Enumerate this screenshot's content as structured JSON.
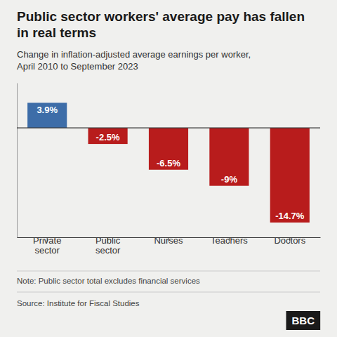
{
  "chart_data": {
    "type": "bar",
    "title": "Public sector workers' average pay has fallen\nin real terms",
    "subtitle": "Change in inflation-adjusted average earnings per worker,\nApril 2010 to September 2023",
    "categories": [
      "Private\nsector",
      "Public\nsector",
      "Nurses",
      "Teachers",
      "Doctors"
    ],
    "values": [
      3.9,
      -2.5,
      -6.5,
      -9.0,
      -14.7
    ],
    "value_labels": [
      "3.9%",
      "-2.5%",
      "-6.5%",
      "-9%",
      "-14.7%"
    ],
    "colors": [
      "#3d6da8",
      "#b81c1c",
      "#b81c1c",
      "#b81c1c",
      "#b81c1c"
    ],
    "ylim": [
      -17,
      7
    ],
    "data_labels": true,
    "tick_labels": "x",
    "grid": false,
    "annotations": [
      "Note: Public sector total excludes financial services",
      "Source: Institute for Fiscal Studies",
      "BBC"
    ]
  }
}
